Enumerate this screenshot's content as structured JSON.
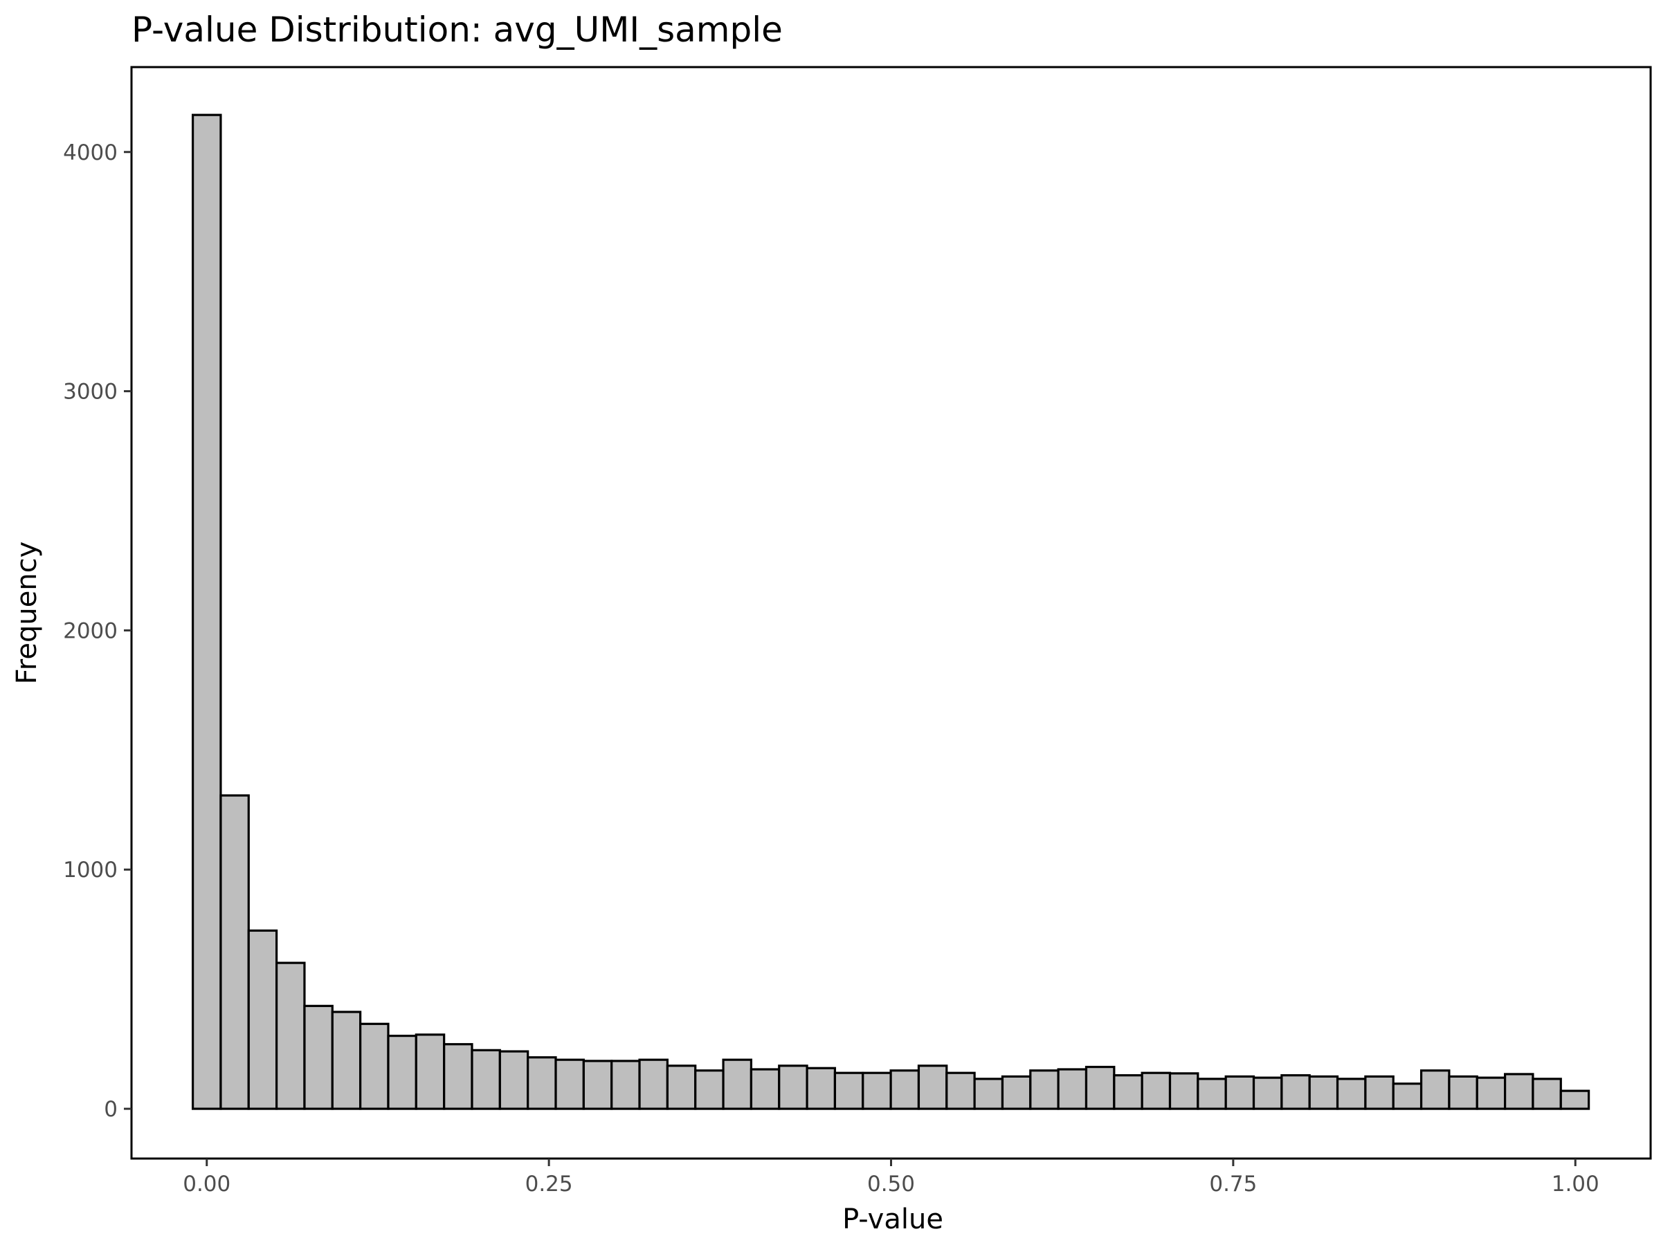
{
  "chart_data": {
    "type": "bar",
    "title": "P-value Distribution: avg_UMI_sample",
    "xlabel": "P-value",
    "ylabel": "Frequency",
    "xlim": [
      -0.055,
      1.055
    ],
    "ylim": [
      -208,
      4355
    ],
    "x_ticks": [
      0,
      0.25,
      0.5,
      0.75,
      1
    ],
    "x_tick_labels": [
      "0.00",
      "0.25",
      "0.50",
      "0.75",
      "1.00"
    ],
    "y_ticks": [
      0,
      1000,
      2000,
      3000,
      4000
    ],
    "y_tick_labels": [
      "0",
      "1000",
      "2000",
      "3000",
      "4000"
    ],
    "bin_width": 0.0204,
    "bin_start": -0.0102,
    "values": [
      4155,
      1310,
      745,
      610,
      430,
      405,
      355,
      305,
      310,
      270,
      245,
      240,
      215,
      205,
      200,
      200,
      205,
      180,
      160,
      205,
      165,
      180,
      170,
      150,
      150,
      160,
      180,
      150,
      125,
      135,
      160,
      165,
      175,
      140,
      150,
      148,
      125,
      135,
      130,
      140,
      135,
      125,
      135,
      105,
      160,
      135,
      130,
      145,
      125,
      75
    ],
    "bar_fill": "#bebebe",
    "bar_stroke": "#000000",
    "grid": false,
    "legend": "none"
  }
}
